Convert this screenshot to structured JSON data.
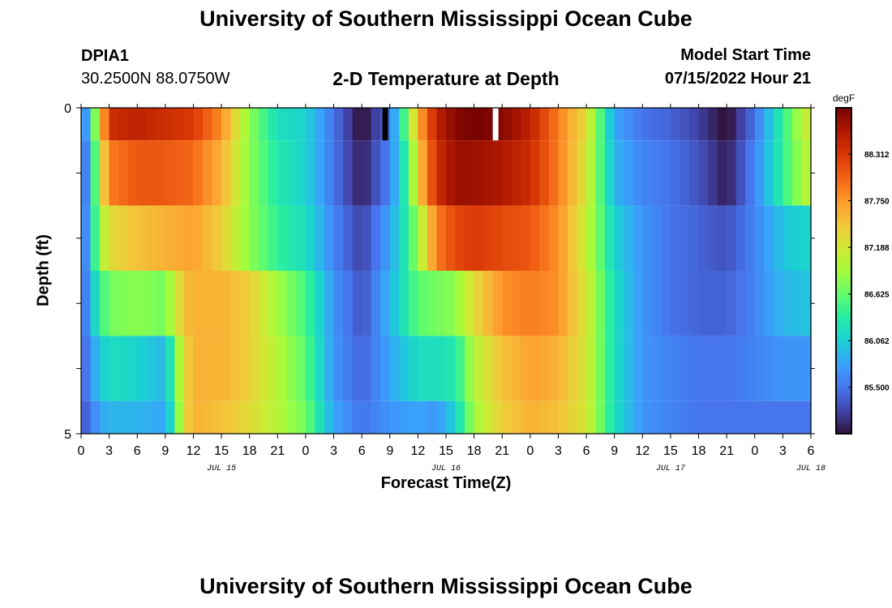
{
  "header": {
    "title": "University of Southern Mississippi Ocean Cube",
    "station_id": "DPIA1",
    "coordinates": "30.2500N  88.0750W",
    "chart_title": "2-D Temperature at Depth",
    "model_start_label": "Model Start Time",
    "model_start_value": "07/15/2022 Hour 21"
  },
  "footer": {
    "title": "University of Southern Mississippi Ocean Cube"
  },
  "colors": {
    "colormap": [
      "#30123b",
      "#4145ab",
      "#4675ed",
      "#39a2fc",
      "#1bcfd4",
      "#24eca6",
      "#61fc6c",
      "#a4fc3b",
      "#d1e834",
      "#f3c63a",
      "#fe9b2d",
      "#f36315",
      "#d93806",
      "#b11901",
      "#7a0402"
    ],
    "min_marker": "#000000",
    "max_marker": "#ffffff"
  },
  "chart_data": {
    "type": "heatmap",
    "title": "2-D Temperature at Depth",
    "xlabel": "Forecast Time(Z)",
    "ylabel": "Depth (ft)",
    "yticks": [
      "0",
      "5"
    ],
    "ylim": [
      0,
      5
    ],
    "xticks": [
      "0",
      "3",
      "6",
      "9",
      "12",
      "15",
      "18",
      "21",
      "0",
      "3",
      "6",
      "9",
      "12",
      "15",
      "18",
      "21",
      "0",
      "3",
      "6",
      "9",
      "12",
      "15",
      "18",
      "21",
      "0",
      "3",
      "6"
    ],
    "date_labels": [
      {
        "label": "JUL 15",
        "hour": 15
      },
      {
        "label": "JUL 16",
        "hour": 39
      },
      {
        "label": "JUL 17",
        "hour": 63
      },
      {
        "label": "JUL 18",
        "hour": 78
      }
    ],
    "colorbar": {
      "unit": "degF",
      "ticks": [
        "85.500",
        "86.062",
        "86.625",
        "87.188",
        "87.750",
        "88.312"
      ],
      "tick_values": [
        85.5,
        86.062,
        86.625,
        87.188,
        87.75,
        88.312
      ],
      "range": [
        84.94,
        88.87
      ]
    },
    "layers": [
      {
        "depth_top": 0.0,
        "depth_bottom": 0.5
      },
      {
        "depth_top": 0.5,
        "depth_bottom": 1.5
      },
      {
        "depth_top": 1.5,
        "depth_bottom": 2.5
      },
      {
        "depth_top": 2.5,
        "depth_bottom": 3.5
      },
      {
        "depth_top": 3.5,
        "depth_bottom": 4.5
      },
      {
        "depth_top": 4.5,
        "depth_bottom": 5.0
      }
    ],
    "series": [
      {
        "hours": [
          0,
          1,
          2,
          3,
          6,
          9,
          12,
          15,
          18,
          21,
          24,
          27,
          30,
          33,
          35,
          36,
          38,
          40,
          42,
          45,
          48,
          51,
          54,
          57,
          60,
          63,
          66,
          69,
          72,
          75,
          77,
          78
        ],
        "values": [
          85.3,
          86.2,
          87.3,
          88.4,
          88.5,
          88.4,
          88.3,
          87.8,
          86.8,
          86.2,
          86.1,
          85.5,
          84.9,
          85.5,
          86.8,
          87.6,
          88.5,
          88.8,
          88.9,
          88.8,
          88.5,
          87.9,
          87.3,
          85.8,
          85.5,
          85.4,
          85.2,
          84.9,
          85.5,
          86.4,
          87.0,
          87.2
        ]
      },
      {
        "hours": [
          0,
          1,
          2,
          3,
          6,
          9,
          12,
          15,
          18,
          21,
          24,
          27,
          30,
          33,
          35,
          36,
          38,
          40,
          42,
          45,
          48,
          51,
          54,
          57,
          60,
          63,
          66,
          69,
          72,
          75,
          77,
          78
        ],
        "values": [
          85.2,
          86.0,
          87.1,
          87.9,
          88.1,
          88.1,
          88.0,
          87.6,
          86.8,
          86.3,
          86.1,
          85.5,
          85.0,
          85.6,
          86.5,
          87.4,
          88.4,
          88.7,
          88.7,
          88.6,
          88.4,
          87.9,
          87.2,
          85.9,
          85.6,
          85.5,
          85.3,
          85.0,
          85.6,
          86.4,
          86.9,
          87.1
        ]
      },
      {
        "hours": [
          0,
          1,
          2,
          3,
          6,
          9,
          12,
          15,
          18,
          21,
          24,
          27,
          30,
          33,
          35,
          36,
          38,
          40,
          42,
          45,
          48,
          51,
          54,
          57,
          60,
          63,
          66,
          69,
          72,
          75,
          77,
          78
        ],
        "values": [
          85.3,
          86.0,
          86.9,
          87.3,
          87.5,
          87.6,
          87.7,
          87.4,
          86.8,
          86.4,
          86.2,
          85.6,
          85.2,
          85.8,
          86.4,
          86.9,
          87.9,
          88.2,
          88.3,
          88.2,
          88.1,
          87.8,
          87.1,
          86.1,
          85.7,
          85.5,
          85.4,
          85.3,
          85.6,
          86.0,
          86.1,
          86.1
        ]
      },
      {
        "hours": [
          0,
          1,
          2,
          3,
          6,
          9,
          10,
          11,
          12,
          15,
          18,
          21,
          24,
          27,
          30,
          33,
          36,
          38,
          40,
          42,
          45,
          48,
          51,
          54,
          57,
          60,
          63,
          66,
          69,
          72,
          75,
          78
        ],
        "values": [
          85.3,
          85.9,
          86.4,
          86.7,
          86.8,
          86.7,
          87.1,
          87.5,
          87.6,
          87.6,
          87.4,
          86.9,
          86.5,
          85.7,
          85.3,
          85.9,
          86.6,
          86.7,
          86.8,
          87.3,
          87.8,
          87.9,
          87.8,
          87.2,
          86.2,
          85.7,
          85.5,
          85.4,
          85.4,
          85.6,
          85.9,
          86.0
        ]
      },
      {
        "hours": [
          0,
          1,
          2,
          3,
          6,
          9,
          10,
          11,
          12,
          15,
          18,
          21,
          24,
          27,
          30,
          33,
          36,
          38,
          40,
          42,
          45,
          48,
          51,
          54,
          57,
          60,
          63,
          66,
          69,
          72,
          75,
          78
        ],
        "values": [
          85.3,
          85.7,
          86.0,
          86.2,
          86.1,
          85.9,
          86.6,
          87.3,
          87.6,
          87.6,
          87.4,
          87.0,
          86.6,
          85.7,
          85.4,
          85.8,
          86.2,
          86.2,
          86.3,
          87.0,
          87.5,
          87.7,
          87.6,
          87.2,
          86.2,
          85.7,
          85.6,
          85.5,
          85.5,
          85.6,
          85.7,
          85.7
        ]
      },
      {
        "hours": [
          0,
          1,
          2,
          3,
          6,
          9,
          10,
          11,
          12,
          15,
          18,
          21,
          24,
          27,
          30,
          33,
          36,
          38,
          40,
          42,
          45,
          48,
          51,
          54,
          57,
          60,
          63,
          66,
          69,
          72,
          75,
          78
        ],
        "values": [
          85.3,
          85.5,
          85.8,
          85.9,
          85.9,
          85.8,
          86.4,
          87.3,
          87.6,
          87.5,
          87.3,
          87.0,
          86.7,
          85.8,
          85.5,
          85.7,
          85.8,
          85.7,
          86.1,
          86.9,
          87.4,
          87.6,
          87.5,
          87.2,
          86.2,
          85.7,
          85.6,
          85.5,
          85.5,
          85.5,
          85.5,
          85.5
        ]
      }
    ],
    "markers": [
      {
        "type": "min",
        "hour": 32.5,
        "depth_top": 0,
        "depth_bottom": 0.5
      },
      {
        "type": "max",
        "hour": 44.3,
        "depth_top": 0,
        "depth_bottom": 0.5
      }
    ]
  }
}
